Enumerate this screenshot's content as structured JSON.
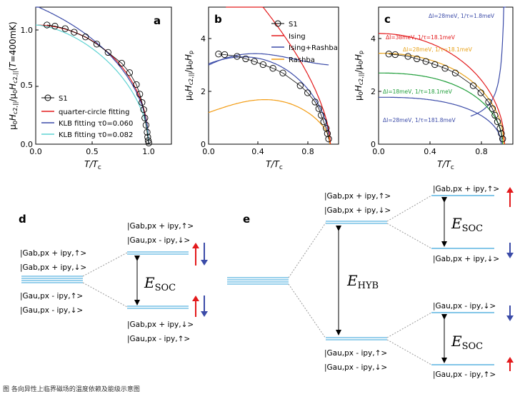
{
  "chart_data": [
    {
      "panel": "a",
      "type": "line",
      "ylabel": "μ0Hc2,||/μ0Hc2,||(T=400mK)",
      "xlabel": "T/Tc",
      "xlim": [
        0,
        1.2
      ],
      "ylim": [
        0,
        1.15
      ],
      "xticks": [
        "0.0",
        "0.5",
        "1.0"
      ],
      "yticks": [
        "0.0",
        "0.5",
        "1.0"
      ],
      "legend": [
        "S1",
        "quarter-circle fitting",
        "KLB fitting τ0=0.060",
        "KLB fitting τ0=0.082"
      ],
      "colors": [
        "#000000",
        "#e31a1c",
        "#3b4ba8",
        "#5fd3d3"
      ],
      "series": [
        {
          "name": "S1",
          "x": [
            0.1,
            0.17,
            0.26,
            0.34,
            0.44,
            0.54,
            0.64,
            0.76,
            0.83,
            0.89,
            0.92,
            0.94,
            0.955,
            0.965,
            0.975,
            0.985,
            0.99,
            0.995,
            1.0
          ],
          "y": [
            1.0,
            0.99,
            0.97,
            0.94,
            0.9,
            0.84,
            0.77,
            0.68,
            0.6,
            0.5,
            0.42,
            0.35,
            0.29,
            0.22,
            0.16,
            0.1,
            0.06,
            0.03,
            0.01
          ]
        }
      ]
    },
    {
      "panel": "b",
      "type": "line",
      "ylabel": "μ0Hc2,||/μ0Hp",
      "xlabel": "T/Tc",
      "xlim": [
        0,
        1.05
      ],
      "ylim": [
        0,
        5.2
      ],
      "xticks": [
        "0.0",
        "0.4",
        "0.8"
      ],
      "yticks": [
        "0",
        "2",
        "4"
      ],
      "legend": [
        "S1",
        "Ising",
        "Ising+Rashba",
        "Rashba"
      ],
      "colors": [
        "#000000",
        "#e31a1c",
        "#3b4ba8",
        "#f39c12"
      ],
      "series": [
        {
          "name": "S1",
          "x": [
            0.08,
            0.13,
            0.23,
            0.3,
            0.37,
            0.44,
            0.52,
            0.6,
            0.74,
            0.8,
            0.86,
            0.89,
            0.91,
            0.93,
            0.95,
            0.96,
            0.97
          ],
          "y": [
            3.42,
            3.4,
            3.33,
            3.24,
            3.14,
            3.02,
            2.88,
            2.7,
            2.22,
            1.95,
            1.6,
            1.35,
            1.1,
            0.85,
            0.6,
            0.4,
            0.2
          ]
        }
      ]
    },
    {
      "panel": "c",
      "type": "line",
      "ylabel": "μ0Hc2,||/μ0Hp",
      "xlabel": "T/Tc",
      "xlim": [
        0,
        1.05
      ],
      "ylim": [
        0,
        5.2
      ],
      "xticks": [
        "0.0",
        "0.4",
        "0.8"
      ],
      "yticks": [
        "0",
        "2",
        "4"
      ],
      "curve_labels": [
        {
          "text": "ΔI=28meV, 1/τ=1.8meV",
          "color": "#3b4ba8"
        },
        {
          "text": "ΔI=38meV, 1/τ=18.1meV",
          "color": "#e31a1c"
        },
        {
          "text": "ΔI=28meV, 1/τ=18.1meV",
          "color": "#e8a31c"
        },
        {
          "text": "ΔI=18meV, 1/τ=18.1meV",
          "color": "#1f9e3a"
        },
        {
          "text": "ΔI=28meV, 1/τ=181.8meV",
          "color": "#3b4ba8"
        }
      ],
      "series": [
        {
          "name": "S1",
          "x": [
            0.08,
            0.13,
            0.23,
            0.3,
            0.37,
            0.44,
            0.52,
            0.6,
            0.74,
            0.8,
            0.86,
            0.89,
            0.91,
            0.93,
            0.95,
            0.96,
            0.97
          ],
          "y": [
            3.42,
            3.4,
            3.33,
            3.24,
            3.14,
            3.02,
            2.88,
            2.7,
            2.22,
            1.95,
            1.6,
            1.35,
            1.1,
            0.85,
            0.6,
            0.4,
            0.2
          ]
        }
      ]
    }
  ],
  "panel_d": {
    "label": "d",
    "left_levels": [
      "|Gab,px + ipy,↑>",
      "|Gab,px + ipy,↓>",
      "|Gau,px - ipy,↑>",
      "|Gau,px - ipy,↓>"
    ],
    "upper_levels": [
      "|Gab,px + ipy,↑>",
      "|Gau,px - ipy,↓>"
    ],
    "lower_levels": [
      "|Gab,px + ipy,↓>",
      "|Gau,px - ipy,↑>"
    ],
    "energy_label": "E",
    "energy_sub": "SOC"
  },
  "panel_e": {
    "label": "e",
    "mid_upper_levels": [
      "|Gab,px + ipy,↑>",
      "|Gab,px + ipy,↓>"
    ],
    "mid_lower_levels": [
      "|Gau,px - ipy,↑>",
      "|Gau,px - ipy,↓>"
    ],
    "right_levels": [
      "|Gab,px + ipy,↑>",
      "|Gab,px + ipy,↓>",
      "|Gau,px - ipy,↓>",
      "|Gau,px - ipy,↑>"
    ],
    "energy_hyb": "E",
    "energy_hyb_sub": "HYB",
    "energy_soc": "E",
    "energy_soc_sub": "SOC"
  },
  "caption": "图 各向异性上临界磁场的温度依赖及能级示意图"
}
